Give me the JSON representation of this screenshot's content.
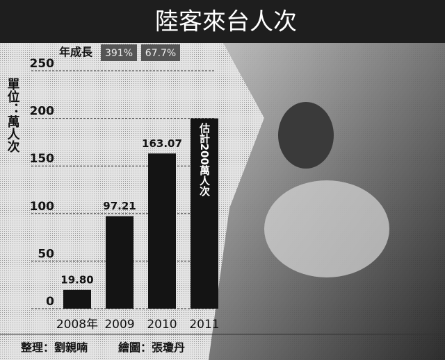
{
  "chart_data": {
    "type": "bar",
    "title": "陸客來台人次",
    "y_label": "單位：萬人次",
    "growth": {
      "label": "年成長",
      "values": [
        "391%",
        "67.7%"
      ]
    },
    "categories": [
      "2008年",
      "2009",
      "2010",
      "2011"
    ],
    "values": [
      19.8,
      97.21,
      163.07,
      200
    ],
    "value_labels": [
      "19.80",
      "97.21",
      "163.07",
      "估計200萬人次"
    ],
    "color": "#141414",
    "ylim": [
      0,
      250
    ],
    "yticks": [
      0,
      50,
      100,
      150,
      200,
      250
    ],
    "grid": true,
    "footer": [
      "整理：劉親喃",
      "繪圖：張瓊丹"
    ]
  }
}
